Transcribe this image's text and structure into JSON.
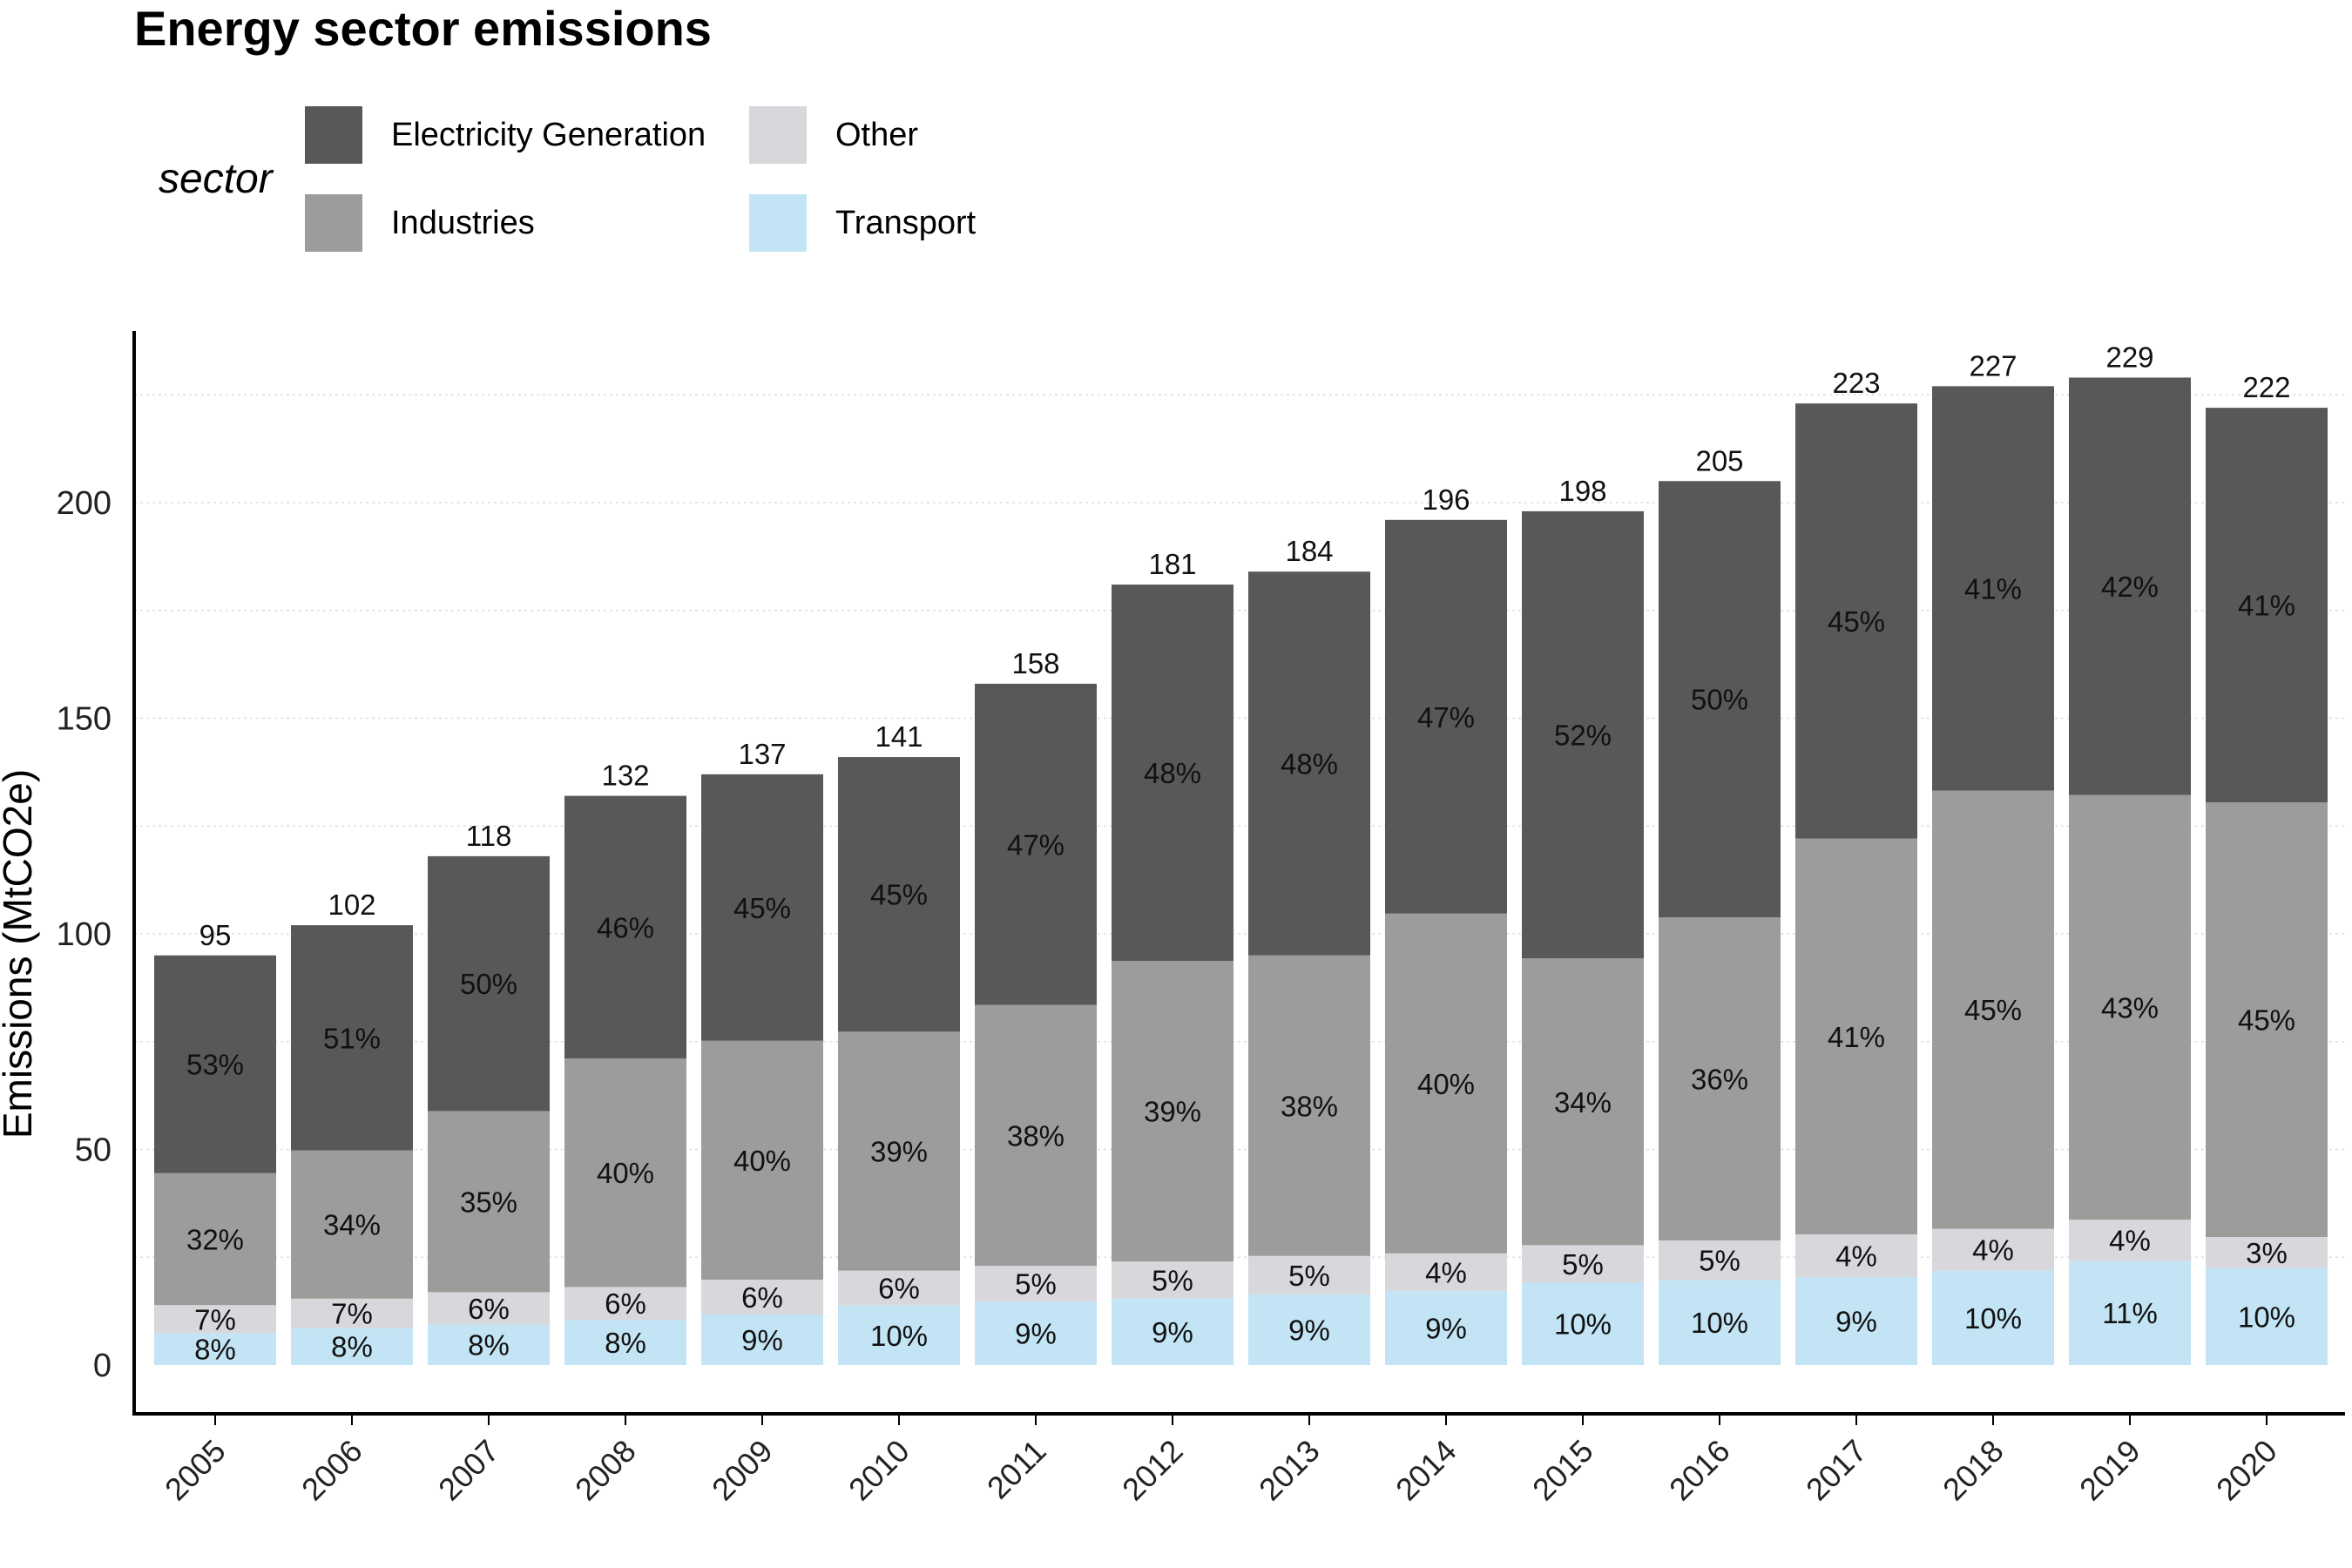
{
  "chart_data": {
    "type": "bar",
    "stacked": true,
    "title": "Energy sector emissions",
    "ylabel": "Emissions (MtCO2e)",
    "xlabel": "",
    "ylim": [
      0,
      240
    ],
    "yticks": [
      0,
      50,
      100,
      150,
      200
    ],
    "grid": "horizontal dotted",
    "legend": {
      "title": "sector",
      "placement": "top-left",
      "entries": [
        "Electricity Generation",
        "Industries",
        "Other",
        "Transport"
      ]
    },
    "categories": [
      "2005",
      "2006",
      "2007",
      "2008",
      "2009",
      "2010",
      "2011",
      "2012",
      "2013",
      "2014",
      "2015",
      "2016",
      "2017",
      "2018",
      "2019",
      "2020"
    ],
    "totals": [
      95,
      102,
      118,
      132,
      137,
      141,
      158,
      181,
      184,
      196,
      198,
      205,
      223,
      227,
      229,
      222
    ],
    "series": [
      {
        "name": "Transport",
        "color": "#c3e4f4",
        "values": [
          7.4,
          8.6,
          9.4,
          10.5,
          11.7,
          13.8,
          14.7,
          15.4,
          16.4,
          17.2,
          19.1,
          19.7,
          20.4,
          21.9,
          24.2,
          22.5
        ],
        "labels": [
          "8%",
          "8%",
          "8%",
          "8%",
          "9%",
          "10%",
          "9%",
          "9%",
          "9%",
          "9%",
          "10%",
          "10%",
          "9%",
          "10%",
          "11%",
          "10%"
        ]
      },
      {
        "name": "Other",
        "color": "#d7d7dc",
        "values": [
          6.5,
          6.8,
          7.5,
          7.6,
          8.1,
          8.1,
          8.3,
          8.6,
          8.9,
          8.7,
          8.7,
          9.2,
          9.9,
          9.7,
          9.5,
          7.2
        ],
        "labels": [
          "7%",
          "7%",
          "6%",
          "6%",
          "6%",
          "6%",
          "5%",
          "5%",
          "5%",
          "4%",
          "5%",
          "5%",
          "4%",
          "4%",
          "4%",
          "3%"
        ]
      },
      {
        "name": "Industries",
        "color": "#9c9c9a",
        "values": [
          30.6,
          34.4,
          42,
          53,
          55.4,
          55.4,
          60.5,
          69.7,
          69.7,
          78.8,
          66.5,
          74.9,
          91.8,
          101.6,
          98.5,
          100.8
        ],
        "labels": [
          "32%",
          "34%",
          "35%",
          "40%",
          "40%",
          "39%",
          "38%",
          "39%",
          "38%",
          "40%",
          "34%",
          "36%",
          "41%",
          "45%",
          "43%",
          "45%"
        ]
      },
      {
        "name": "Electricity Generation",
        "color": "#585856",
        "values": [
          50.5,
          52.2,
          59.1,
          60.9,
          61.8,
          63.7,
          74.5,
          87.3,
          89,
          91.3,
          103.7,
          101.2,
          100.9,
          93.8,
          96.8,
          91.5
        ],
        "labels": [
          "53%",
          "51%",
          "50%",
          "46%",
          "45%",
          "45%",
          "47%",
          "48%",
          "48%",
          "47%",
          "52%",
          "50%",
          "45%",
          "41%",
          "42%",
          "41%"
        ]
      }
    ]
  }
}
